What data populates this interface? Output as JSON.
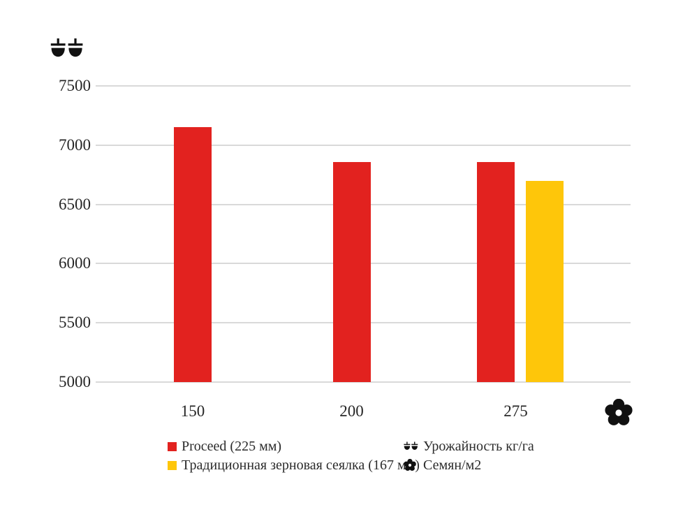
{
  "chart_data": {
    "type": "bar",
    "categories": [
      "150",
      "200",
      "275"
    ],
    "series": [
      {
        "name": "Proceed (225 мм)",
        "color": "#e2221f",
        "values": [
          7150,
          6860,
          6860
        ]
      },
      {
        "name": "Традиционная зерновая сеялка (167 мм)",
        "color": "#fec60a",
        "values": [
          null,
          null,
          6700
        ]
      }
    ],
    "title": "",
    "xlabel": "",
    "ylabel": "",
    "ylim": [
      5000,
      7500
    ],
    "y_ticks": [
      7500,
      7000,
      6500,
      6000,
      5500,
      5000
    ],
    "grid": true,
    "legend_position": "bottom",
    "y_axis_icon": "scales",
    "x_axis_icon": "flower"
  },
  "colors": {
    "bar_red": "#e2221f",
    "bar_yellow": "#fec60a",
    "gridline": "#d9d9d9",
    "text": "#262626",
    "icon": "#111111"
  },
  "legend": {
    "columns": [
      [
        {
          "icon": "square",
          "color": "#e2221f",
          "label": "Proceed (225 мм)"
        },
        {
          "icon": "square",
          "color": "#fec60a",
          "label": "Традиционная зерновая сеялка (167 мм)"
        }
      ],
      [
        {
          "icon": "scales",
          "label": "Урожайность кг/га"
        },
        {
          "icon": "flower",
          "label": "Семян/м2"
        }
      ]
    ]
  }
}
